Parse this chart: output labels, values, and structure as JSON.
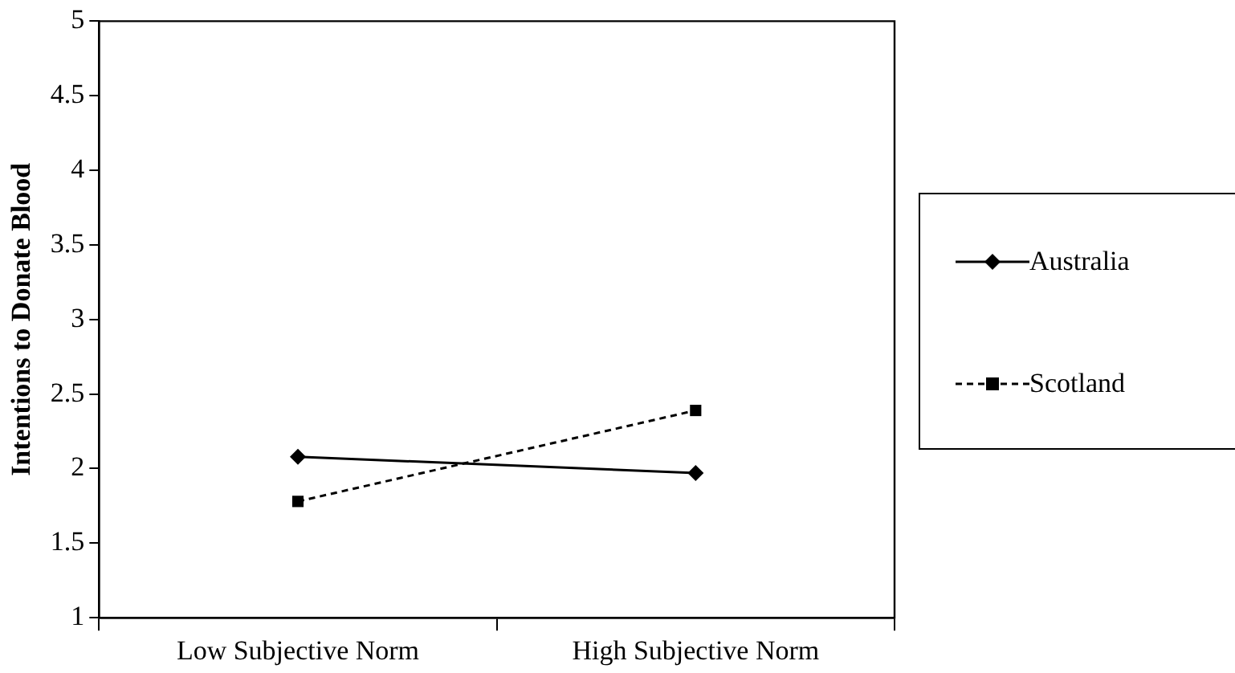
{
  "chart_data": {
    "type": "line",
    "ylabel": "Intentions to Donate Blood",
    "categories": [
      "Low Subjective Norm",
      "High Subjective Norm"
    ],
    "series": [
      {
        "name": "Australia",
        "color": "#000000",
        "values": [
          2.08,
          1.97
        ],
        "marker": "diamond",
        "line_style": "solid"
      },
      {
        "name": "Scotland",
        "color": "#000000",
        "values": [
          1.78,
          2.39
        ],
        "marker": "square",
        "line_style": "dashed"
      }
    ],
    "ylim": [
      1,
      5
    ],
    "yticks": [
      1,
      1.5,
      2,
      2.5,
      3,
      3.5,
      4,
      4.5,
      5
    ],
    "grid": false,
    "legend": "right"
  }
}
